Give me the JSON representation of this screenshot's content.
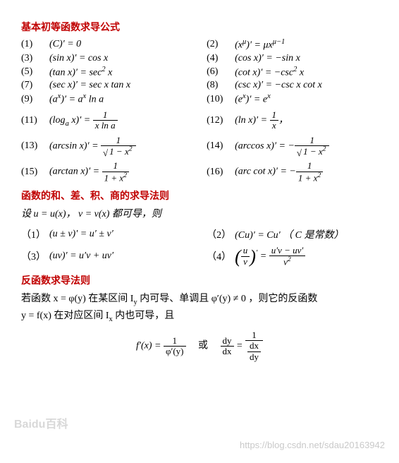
{
  "sections": {
    "basic_title": "基本初等函数求导公式",
    "rules_title": "函数的和、差、积、商的求导法则",
    "inverse_title": "反函数求导法则"
  },
  "basic": [
    {
      "n": "(1)",
      "f": "(C)′ = 0"
    },
    {
      "n": "(2)",
      "f": "(x<sup>μ</sup>)′ = μx<sup>μ−1</sup>"
    },
    {
      "n": "(3)",
      "f": "(sin x)′ = cos x"
    },
    {
      "n": "(4)",
      "f": "(cos x)′ = −sin x"
    },
    {
      "n": "(5)",
      "f": "(tan x)′ = sec<sup>2</sup> x"
    },
    {
      "n": "(6)",
      "f": "(cot x)′ = −csc<sup>2</sup> x"
    },
    {
      "n": "(7)",
      "f": "(sec x)′ = sec x tan x"
    },
    {
      "n": "(8)",
      "f": "(csc x)′ = −csc x cot x"
    },
    {
      "n": "(9)",
      "f": "(a<sup>x</sup>)′ = a<sup>x</sup> ln a"
    },
    {
      "n": "(10)",
      "f": "(e<sup>x</sup>)′ = e<sup>x</sup>"
    }
  ],
  "basic_frac": [
    {
      "n": "(11)",
      "pre": "(log<sub>a</sub> x)′ = ",
      "num": "1",
      "den": "x ln a"
    },
    {
      "n": "(12)",
      "pre": "(ln x)′ = ",
      "num": "1",
      "den": "x",
      "post": "，"
    },
    {
      "n": "(13)",
      "pre": "(arcsin x)′ = ",
      "num": "1",
      "den_sqrt": "1 − x<sup>2</sup>"
    },
    {
      "n": "(14)",
      "pre": "(arccos x)′ = −",
      "num": "1",
      "den_sqrt": "1 − x<sup>2</sup>"
    },
    {
      "n": "(15)",
      "pre": "(arctan x)′ = ",
      "num": "1",
      "den": "1 + x<sup>2</sup>"
    },
    {
      "n": "(16)",
      "pre": "(arc cot x)′ = −",
      "num": "1",
      "den": "1 + x<sup>2</sup>"
    }
  ],
  "rules_intro": "设 u = u(x)， v = v(x) 都可导，则",
  "rules": [
    {
      "n": "（1）",
      "f": "(u ± v)′ = u′ ± v′"
    },
    {
      "n": "（2）",
      "f": "(Cu)′ = Cu′ （ C 是常数）"
    },
    {
      "n": "（3）",
      "f": "(uv)′ = u′v + uv′"
    },
    {
      "n": "（4）",
      "pre_paren": "u|v",
      "eq": " = ",
      "num": "u′v − uv′",
      "den": "v<sup>2</sup>"
    }
  ],
  "inverse_text1": "若函数 x = φ(y) 在某区间 I<sub>y</sub> 内可导、单调且 φ′(y) ≠ 0 ，则它的反函数",
  "inverse_text2": "y = f(x) 在对应区间 I<sub>x</sub> 内也可导，且",
  "inverse_formula": {
    "lhs": "f′(x) = ",
    "num": "1",
    "den": "φ′(y)",
    "or": "或",
    "r_num1": "dy",
    "r_den1": "dx",
    "r_num2": "1",
    "r_den_num": "dx",
    "r_den_den": "dy"
  },
  "watermark": "https://blog.csdn.net/sdau20163942",
  "baidu": "Baidu百科"
}
